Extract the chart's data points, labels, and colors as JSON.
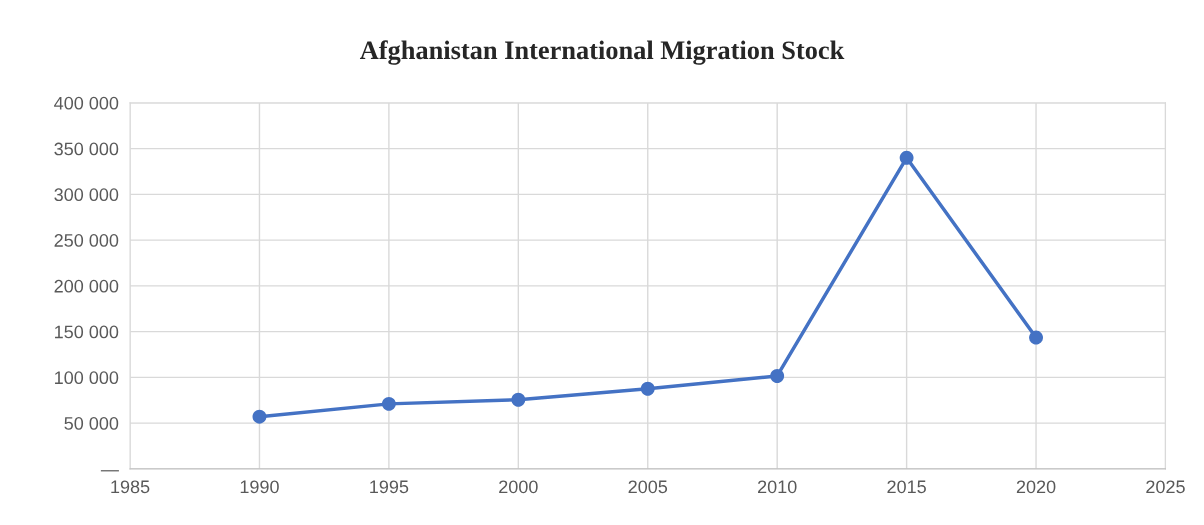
{
  "chart_data": {
    "type": "line",
    "title": "Afghanistan International Migration Stock",
    "x": [
      1990,
      1995,
      2000,
      2005,
      2010,
      2015,
      2020
    ],
    "series": [
      {
        "color": "#4472c4",
        "values": [
          57000,
          71000,
          75500,
          87500,
          101500,
          340000,
          143500
        ]
      }
    ],
    "xlim": [
      1985,
      2025
    ],
    "xticks": [
      1985,
      1990,
      1995,
      2000,
      2005,
      2010,
      2015,
      2020,
      2025
    ],
    "ylim": [
      0,
      400000
    ],
    "yticks": [
      {
        "value": 0,
        "label": "—"
      },
      {
        "value": 50000,
        "label": "50 000"
      },
      {
        "value": 100000,
        "label": "100 000"
      },
      {
        "value": 150000,
        "label": "150 000"
      },
      {
        "value": 200000,
        "label": "200 000"
      },
      {
        "value": 250000,
        "label": "250 000"
      },
      {
        "value": 300000,
        "label": "300 000"
      },
      {
        "value": 350000,
        "label": "350 000"
      },
      {
        "value": 400000,
        "label": "400 000"
      }
    ],
    "grid": true,
    "marker": "circle",
    "line_style": "solid",
    "legend": false
  }
}
